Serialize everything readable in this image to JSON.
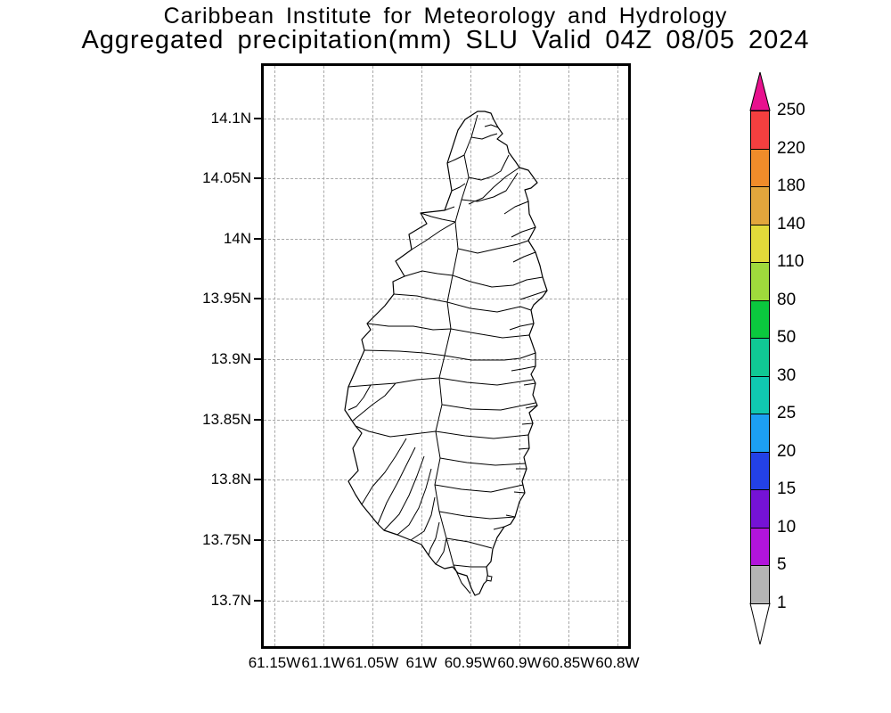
{
  "title": {
    "line1": "Caribbean Institute for Meteorology and Hydrology",
    "line2": "Aggregated precipitation(mm) SLU Valid 04Z 08/05 2024"
  },
  "axes": {
    "y_ticks": [
      "14.1N",
      "14.05N",
      "14N",
      "13.95N",
      "13.9N",
      "13.85N",
      "13.8N",
      "13.75N",
      "13.7N"
    ],
    "x_ticks": [
      "61.15W",
      "61.1W",
      "61.05W",
      "61W",
      "60.95W",
      "60.9W",
      "60.85W",
      "60.8W"
    ]
  },
  "colorbar": {
    "values": [
      250,
      220,
      180,
      140,
      110,
      80,
      50,
      30,
      25,
      20,
      15,
      10,
      5,
      1
    ],
    "segment_colors_top_to_bottom": [
      "#f43f3f",
      "#f08c2a",
      "#e2a63c",
      "#e2da3a",
      "#9fda3c",
      "#0bc83e",
      "#10c894",
      "#10c8b0",
      "#1c9ff2",
      "#2341e6",
      "#7512d6",
      "#b214dc",
      "#b4b4b4"
    ],
    "arrow_top_color": "#e8118e",
    "arrow_bottom_color": "#ffffff"
  }
}
